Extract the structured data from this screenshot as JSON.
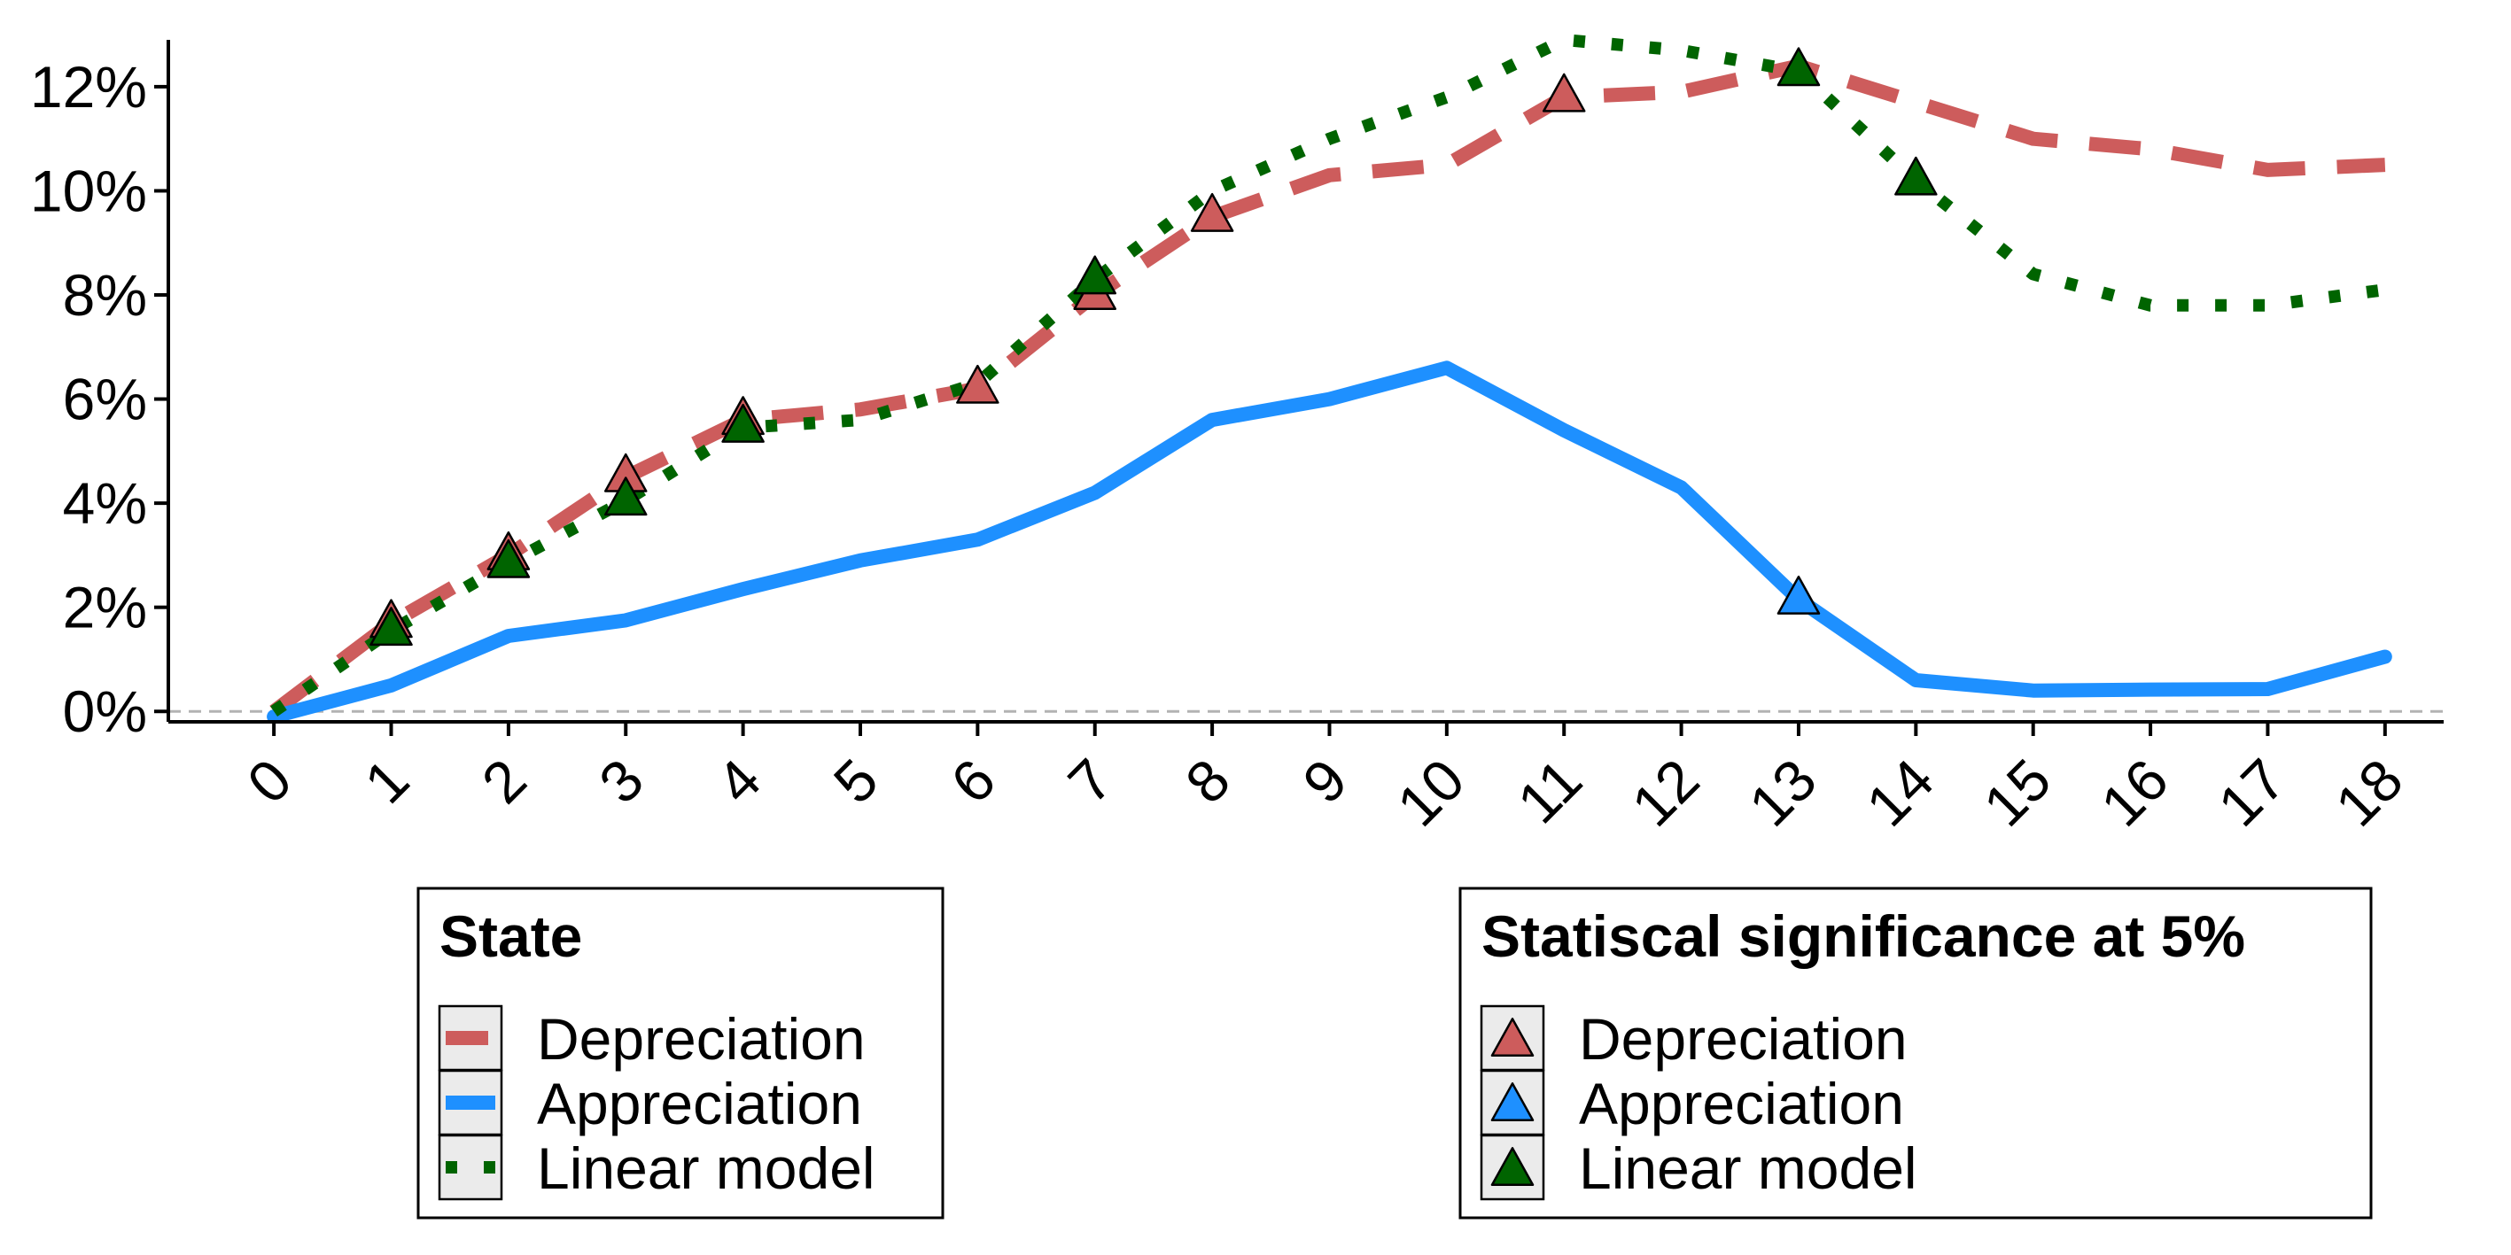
{
  "chart_data": {
    "type": "line",
    "title": "",
    "xlabel": "",
    "ylabel": "",
    "x": [
      0,
      1,
      2,
      3,
      4,
      5,
      6,
      7,
      8,
      9,
      10,
      11,
      12,
      13,
      14,
      15,
      16,
      17,
      18
    ],
    "y_tick_labels": [
      "0%",
      "2%",
      "4%",
      "6%",
      "8%",
      "10%",
      "12%"
    ],
    "y_ticks": [
      0,
      2,
      4,
      6,
      8,
      10,
      12
    ],
    "ylim": [
      -0.2,
      12.9
    ],
    "xlim": [
      -0.9,
      18.5
    ],
    "reference_line": {
      "y": 0,
      "style": "dashed",
      "color": "#b3b3b3"
    },
    "series": [
      {
        "name": "Depreciation",
        "style": "dashed",
        "color": "#cd5c5c",
        "values": [
          0.0,
          1.7,
          3.0,
          4.5,
          5.6,
          5.8,
          6.2,
          8.0,
          9.5,
          10.3,
          10.5,
          11.8,
          11.9,
          12.4,
          11.7,
          11.0,
          10.8,
          10.4,
          10.5
        ],
        "significant_x": [
          1,
          2,
          3,
          4,
          6,
          7,
          8,
          11
        ]
      },
      {
        "name": "Appreciation",
        "style": "solid",
        "color": "#1e90ff",
        "values": [
          -0.1,
          0.5,
          1.45,
          1.75,
          2.35,
          2.9,
          3.3,
          4.2,
          5.6,
          6.0,
          6.6,
          5.4,
          4.3,
          2.15,
          0.6,
          0.4,
          0.42,
          0.43,
          1.05
        ],
        "significant_x": [
          13
        ]
      },
      {
        "name": "Linear model",
        "style": "dotted",
        "color": "#006400",
        "values": [
          0.0,
          1.55,
          2.85,
          4.05,
          5.45,
          5.6,
          6.3,
          8.3,
          10.0,
          11.0,
          11.8,
          12.9,
          12.7,
          12.3,
          10.2,
          8.4,
          7.8,
          7.8,
          8.1
        ],
        "significant_x": [
          1,
          2,
          3,
          4,
          7,
          13,
          14
        ]
      }
    ],
    "legends": [
      {
        "title": "State",
        "kind": "line",
        "entries": [
          "Depreciation",
          "Appreciation",
          "Linear model"
        ]
      },
      {
        "title": "Statiscal significance at 5%",
        "kind": "triangle",
        "entries": [
          "Depreciation",
          "Appreciation",
          "Linear model"
        ]
      }
    ]
  }
}
